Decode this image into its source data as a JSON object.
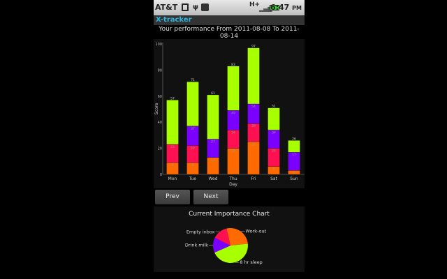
{
  "status_bar": {
    "carrier": "AT&T",
    "network": "H+",
    "time": "6:47",
    "ampm": "PM",
    "icons": [
      "sd-card-icon",
      "usb-icon",
      "android-icon",
      "signal-icon",
      "battery-charging-icon"
    ]
  },
  "app": {
    "title": "X-tracker",
    "subtitle": "Your performance From 2011-08-08 To 2011-08-14"
  },
  "buttons": {
    "prev": "Prev",
    "next": "Next"
  },
  "colors": {
    "orange": "#ff6a00",
    "red": "#ff1050",
    "purple": "#7a00ff",
    "green": "#a8ff00",
    "accent": "#2ab7e3"
  },
  "chart_data": [
    {
      "type": "bar",
      "stacked": true,
      "xlabel": "Day",
      "ylabel": "Score",
      "ylim": [
        0,
        100
      ],
      "yticks": [
        0,
        20,
        40,
        60,
        80,
        100
      ],
      "categories": [
        "Mon",
        "Tue",
        "Wed",
        "Thu",
        "Fri",
        "Sat",
        "Sun"
      ],
      "series": [
        {
          "color": "#ff6a00",
          "values": [
            9,
            9,
            13,
            20,
            25,
            6,
            3
          ]
        },
        {
          "color": "#ff1050",
          "values": [
            14,
            13,
            0,
            14,
            14,
            14,
            0
          ]
        },
        {
          "color": "#7a00ff",
          "values": [
            0,
            15,
            14,
            15,
            15,
            14,
            14
          ]
        },
        {
          "color": "#a8ff00",
          "values": [
            34,
            34,
            34,
            34,
            43,
            17,
            9
          ]
        }
      ]
    },
    {
      "type": "pie",
      "title": "Current Importance Chart",
      "slices": [
        {
          "label": "Work-out",
          "value": 27,
          "color": "#ff6a00"
        },
        {
          "label": "8 hr sleep",
          "value": 45,
          "color": "#a8ff00"
        },
        {
          "label": "Drink milk",
          "value": 14,
          "color": "#7a00ff"
        },
        {
          "label": "Empty inbox",
          "value": 14,
          "color": "#ff1050"
        }
      ]
    }
  ]
}
